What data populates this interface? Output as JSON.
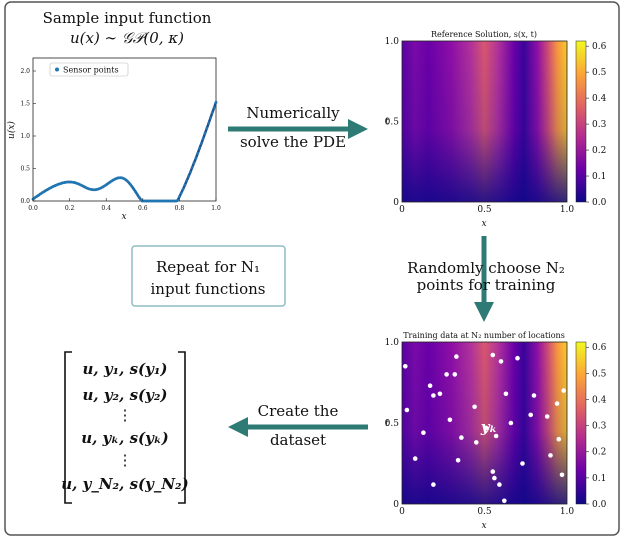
{
  "sample": {
    "title_line1": "Sample input function",
    "title_line2": "u(x) ∼ 𝒢𝒫(0, κ)",
    "ylabel": "u(x)",
    "xlabel": "x",
    "legend": "Sensor points",
    "xticks": [
      "0.0",
      "0.2",
      "0.4",
      "0.6",
      "0.8",
      "1.0"
    ],
    "yticks": [
      "0.0",
      "0.5",
      "1.0",
      "1.5",
      "2.0"
    ]
  },
  "arrows": {
    "solve_line1": "Numerically",
    "solve_line2": "solve the PDE",
    "choose_line1": "Randomly choose N₂",
    "choose_line2": "points for training",
    "create_line1": "Create the",
    "create_line2": "dataset"
  },
  "repeat_box": {
    "line1": "Repeat for N₁",
    "line2": "input functions"
  },
  "reference": {
    "title": "Reference Solution, s(x, t)",
    "xlabel": "x",
    "ylabel": "t",
    "xticks": [
      "0",
      "0.5",
      "1.0"
    ],
    "yticks": [
      "0",
      "0.5",
      "1.0"
    ],
    "cbar_ticks": [
      "0.0",
      "0.1",
      "0.2",
      "0.3",
      "0.4",
      "0.5",
      "0.6"
    ]
  },
  "training": {
    "title": "Training data at N₂ number of locations",
    "xlabel": "x",
    "ylabel": "t",
    "point_label": "yₖ",
    "xticks": [
      "0",
      "0.5",
      "1.0"
    ],
    "yticks": [
      "0",
      "0.5",
      "1.0"
    ],
    "cbar_ticks": [
      "0.0",
      "0.1",
      "0.2",
      "0.3",
      "0.4",
      "0.5",
      "0.6"
    ],
    "points": [
      [
        0.02,
        0.85
      ],
      [
        0.03,
        0.58
      ],
      [
        0.17,
        0.73
      ],
      [
        0.19,
        0.67
      ],
      [
        0.23,
        0.68
      ],
      [
        0.27,
        0.8
      ],
      [
        0.29,
        0.52
      ],
      [
        0.32,
        0.8
      ],
      [
        0.33,
        0.91
      ],
      [
        0.36,
        0.41
      ],
      [
        0.44,
        0.6
      ],
      [
        0.51,
        0.47
      ],
      [
        0.55,
        0.92
      ],
      [
        0.6,
        0.88
      ],
      [
        0.63,
        0.68
      ],
      [
        0.7,
        0.9
      ],
      [
        0.78,
        0.55
      ],
      [
        0.8,
        0.67
      ],
      [
        0.88,
        0.54
      ],
      [
        0.94,
        0.62
      ],
      [
        0.98,
        0.7
      ],
      [
        0.13,
        0.44
      ],
      [
        0.45,
        0.38
      ],
      [
        0.57,
        0.42
      ],
      [
        0.66,
        0.5
      ],
      [
        0.9,
        0.3
      ],
      [
        0.95,
        0.4
      ],
      [
        0.08,
        0.28
      ],
      [
        0.19,
        0.12
      ],
      [
        0.34,
        0.27
      ],
      [
        0.55,
        0.2
      ],
      [
        0.59,
        0.12
      ],
      [
        0.73,
        0.25
      ],
      [
        0.97,
        0.18
      ],
      [
        0.56,
        0.16
      ],
      [
        0.62,
        0.02
      ]
    ]
  },
  "dataset": {
    "rows": [
      "u, y₁, s(y₁)",
      "u, y₂, s(y₂)",
      "⋮",
      "u, yₖ, s(yₖ)",
      "⋮",
      "u, y_N₂, s(y_N₂)"
    ]
  },
  "colors": {
    "arrow": "#2e7b76",
    "box_border": "#8fbcc4"
  }
}
